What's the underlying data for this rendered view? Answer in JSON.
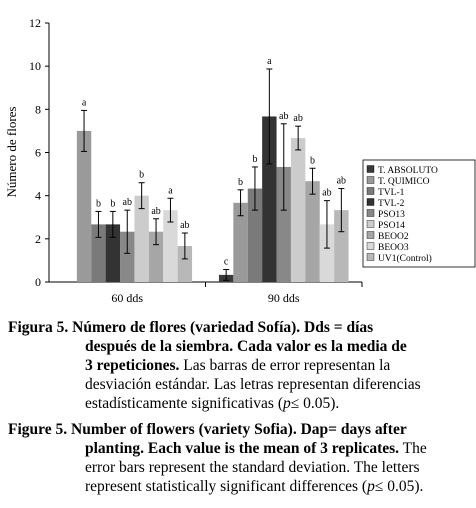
{
  "chart_data": {
    "type": "bar",
    "categories": [
      "60 dds",
      "90 dds"
    ],
    "ylabel": "Número de flores",
    "ylim": [
      0,
      12
    ],
    "yticks": [
      0,
      2,
      4,
      6,
      8,
      10,
      12
    ],
    "legend_placement": "right",
    "series": [
      {
        "name": "T. ABSOLUTO",
        "color": "#3a3a3a",
        "values": [
          null,
          0.33
        ],
        "errors": [
          null,
          0.25
        ],
        "letters": [
          "",
          "c"
        ]
      },
      {
        "name": "T. QUIMICO",
        "color": "#9a9a9a",
        "values": [
          7.0,
          3.67
        ],
        "errors": [
          0.95,
          0.6
        ],
        "letters": [
          "a",
          "b"
        ]
      },
      {
        "name": "TVL-1",
        "color": "#7a7a7a",
        "values": [
          2.67,
          4.33
        ],
        "errors": [
          0.6,
          1.0
        ],
        "letters": [
          "b",
          "b"
        ]
      },
      {
        "name": "TVL-2",
        "color": "#333333",
        "values": [
          2.67,
          7.67
        ],
        "errors": [
          0.6,
          2.2
        ],
        "letters": [
          "b",
          "a"
        ]
      },
      {
        "name": "PSO13",
        "color": "#888888",
        "values": [
          2.33,
          5.33
        ],
        "errors": [
          1.0,
          2.0
        ],
        "letters": [
          "ab",
          "ab"
        ]
      },
      {
        "name": "PSO14",
        "color": "#cccccc",
        "values": [
          4.0,
          6.67
        ],
        "errors": [
          0.6,
          0.55
        ],
        "letters": [
          "b",
          "ab"
        ]
      },
      {
        "name": "BEOO2",
        "color": "#a6a6a6",
        "values": [
          2.33,
          4.67
        ],
        "errors": [
          0.6,
          0.6
        ],
        "letters": [
          "ab",
          "b"
        ]
      },
      {
        "name": "BEOO3",
        "color": "#d9d9d9",
        "values": [
          3.33,
          2.67
        ],
        "errors": [
          0.55,
          1.1
        ],
        "letters": [
          "a",
          "ab"
        ]
      },
      {
        "name": "UV1(Control)",
        "color": "#b8b8b8",
        "values": [
          1.67,
          3.33
        ],
        "errors": [
          0.6,
          1.0
        ],
        "letters": [
          "ab",
          "ab"
        ]
      }
    ]
  },
  "caption_es": {
    "label": "Figura 5.",
    "bold1": "Número de flores (variedad Sofía). Dds = días",
    "bold2": "después de la siembra. Cada valor es la media de",
    "bold3": "3 repeticiones.",
    "normal3": " Las barras de error representan la",
    "line4": "desviación estándar. Las letras representan diferencias",
    "line5a": "estadísticamente significativas (",
    "line5p": "p",
    "line5b": "≤ 0.05)."
  },
  "caption_en": {
    "label": "Figure 5.",
    "bold1": "Number of flowers (variety Sofia). Dap= days after",
    "bold2": "planting. Each value is the mean of 3 replicates.",
    "normal2": " The",
    "line3": "error bars represent the standard deviation. The letters",
    "line4a": "represent statistically significant differences (",
    "line4p": "p",
    "line4b": "≤ 0.05)."
  }
}
